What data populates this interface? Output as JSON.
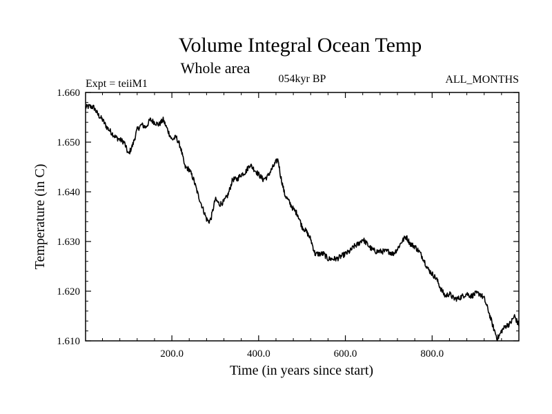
{
  "chart_data": {
    "type": "line",
    "title": "Volume Integral Ocean Temp",
    "subtitle": "Whole area",
    "left_label": "Expt = teiiM1",
    "center_label": "054kyr BP",
    "right_label": "ALL_MONTHS",
    "xlabel": "Time (in years since start)",
    "ylabel": "Temperature (in C)",
    "xlim": [
      1,
      1000
    ],
    "ylim": [
      1.61,
      1.66
    ],
    "x_ticks": [
      200,
      400,
      600,
      800
    ],
    "x_tick_labels": [
      "200.0",
      "400.0",
      "600.0",
      "800.0"
    ],
    "y_ticks": [
      1.61,
      1.62,
      1.63,
      1.64,
      1.65,
      1.66
    ],
    "y_tick_labels": [
      "1.610",
      "1.620",
      "1.630",
      "1.640",
      "1.650",
      "1.660"
    ],
    "grid": false,
    "line_color": "#000000",
    "series": [
      {
        "x": [
          1,
          10,
          20,
          30,
          40,
          50,
          60,
          70,
          80,
          90,
          100,
          110,
          120,
          130,
          140,
          150,
          160,
          170,
          180,
          190,
          200,
          210,
          220,
          230,
          240,
          250,
          260,
          270,
          280,
          285,
          290,
          300,
          310,
          320,
          330,
          340,
          350,
          360,
          370,
          380,
          390,
          400,
          410,
          420,
          430,
          440,
          445,
          450,
          460,
          470,
          480,
          490,
          500,
          510,
          520,
          530,
          540,
          550,
          560,
          570,
          580,
          590,
          600,
          610,
          620,
          630,
          640,
          650,
          660,
          670,
          680,
          690,
          700,
          710,
          720,
          730,
          740,
          750,
          760,
          770,
          780,
          790,
          800,
          810,
          820,
          830,
          840,
          850,
          860,
          870,
          880,
          890,
          900,
          910,
          920,
          930,
          940,
          950,
          955,
          960,
          970,
          980,
          990,
          1000
        ],
        "values": [
          1.657,
          1.6572,
          1.657,
          1.6555,
          1.6545,
          1.653,
          1.652,
          1.651,
          1.6505,
          1.65,
          1.6475,
          1.6495,
          1.6525,
          1.6535,
          1.653,
          1.6545,
          1.654,
          1.6535,
          1.6545,
          1.6525,
          1.6505,
          1.651,
          1.649,
          1.645,
          1.6445,
          1.6425,
          1.6395,
          1.637,
          1.6345,
          1.634,
          1.6345,
          1.6385,
          1.6375,
          1.638,
          1.6395,
          1.6425,
          1.6425,
          1.6435,
          1.644,
          1.6455,
          1.6445,
          1.6435,
          1.6425,
          1.643,
          1.6445,
          1.646,
          1.6465,
          1.6435,
          1.6395,
          1.638,
          1.6365,
          1.6355,
          1.633,
          1.632,
          1.6305,
          1.6275,
          1.6275,
          1.6275,
          1.6265,
          1.6265,
          1.6265,
          1.627,
          1.6275,
          1.628,
          1.629,
          1.6295,
          1.6305,
          1.6295,
          1.6285,
          1.628,
          1.628,
          1.628,
          1.628,
          1.6275,
          1.6285,
          1.63,
          1.631,
          1.6295,
          1.629,
          1.628,
          1.6265,
          1.6245,
          1.6235,
          1.6225,
          1.6205,
          1.619,
          1.6195,
          1.6185,
          1.6185,
          1.619,
          1.6195,
          1.619,
          1.6195,
          1.6195,
          1.6185,
          1.616,
          1.613,
          1.6105,
          1.611,
          1.612,
          1.613,
          1.6135,
          1.615,
          1.613
        ]
      }
    ]
  }
}
